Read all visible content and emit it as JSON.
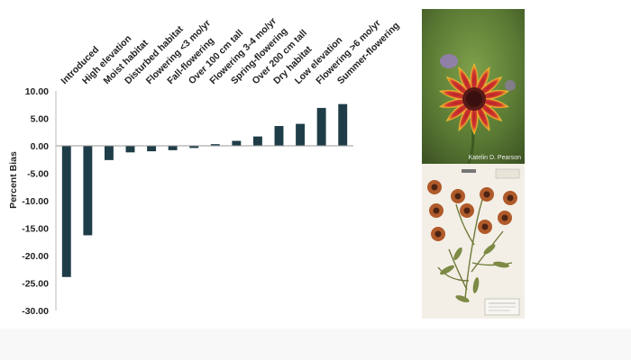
{
  "chart_data": {
    "type": "bar",
    "categories": [
      "Introduced",
      "High elevation",
      "Moist habitat",
      "Disturbed habitat",
      "Flowering <3 mo/yr",
      "Fall-flowering",
      "Over 100 cm tall",
      "Flowering 3-4 mo/yr",
      "Spring-flowering",
      "Over 200 cm tall",
      "Dry habitat",
      "Low elevation",
      "Flowering >6 mo/yr",
      "Summer-flowering"
    ],
    "values": [
      -23.9,
      -16.3,
      -2.6,
      -1.2,
      -1.0,
      -0.8,
      -0.4,
      0.3,
      0.9,
      1.7,
      3.6,
      4.0,
      6.9,
      7.6
    ],
    "title": "",
    "xlabel": "",
    "ylabel": "Percent Bias",
    "ylim": [
      -30,
      10
    ],
    "yticks": [
      "10.00",
      "5.00",
      "0.00",
      "-5.00",
      "-10.00",
      "-15.00",
      "-20.00",
      "-25.00",
      "-30.00"
    ],
    "ytick_values": [
      10,
      5,
      0,
      -5,
      -10,
      -15,
      -20,
      -25,
      -30
    ],
    "bar_color": "#1f3d48",
    "grid": false
  },
  "images": {
    "photo_credit": "Katelin D. Pearson"
  }
}
